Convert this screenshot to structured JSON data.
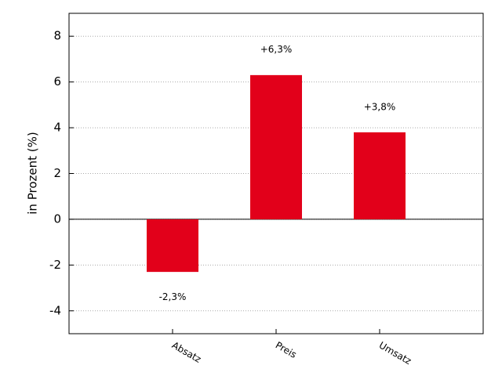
{
  "chart_data": {
    "type": "bar",
    "y_label": "in Prozent (%)",
    "categories": [
      "Absatz",
      "Preis",
      "Umsatz"
    ],
    "values": [
      -2.3,
      6.3,
      3.8
    ],
    "value_labels": [
      "-2,3%",
      "+6,3%",
      "+3,8%"
    ],
    "color": "#e2001a",
    "ylim": [
      -5,
      9
    ],
    "yticks": [
      -4,
      -2,
      0,
      2,
      4,
      6,
      8
    ],
    "grid": true
  }
}
